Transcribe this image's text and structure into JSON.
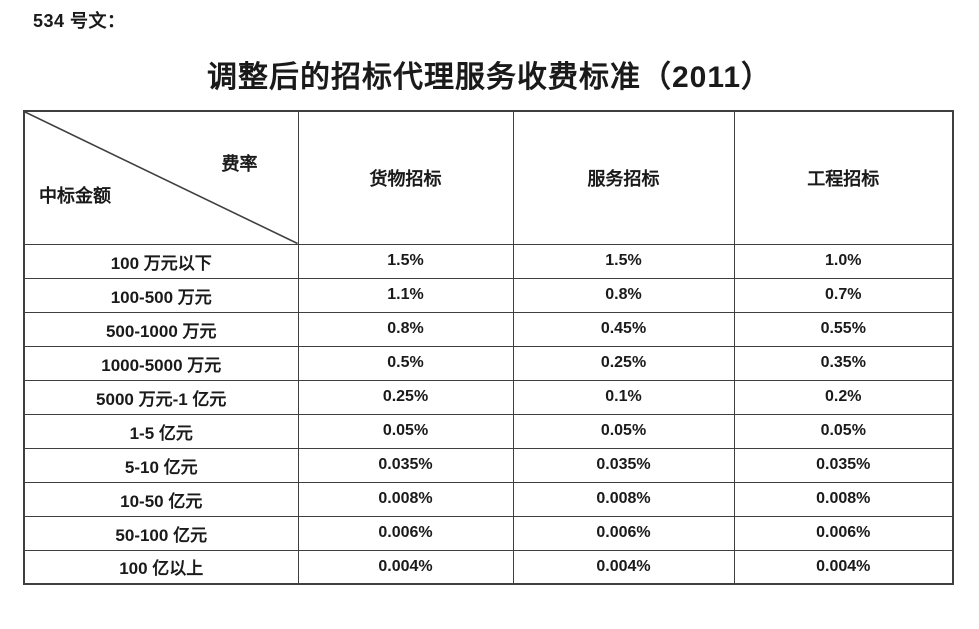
{
  "doc": {
    "label": "534 号文：",
    "title": "调整后的招标代理服务收费标准（2011）"
  },
  "table": {
    "corner": {
      "top_right": "费率",
      "bottom_left": "中标金额"
    },
    "columns": [
      "货物招标",
      "服务招标",
      "工程招标"
    ],
    "rows": [
      {
        "amount": "100 万元以下",
        "values": [
          "1.5%",
          "1.5%",
          "1.0%"
        ]
      },
      {
        "amount": "100-500 万元",
        "values": [
          "1.1%",
          "0.8%",
          "0.7%"
        ]
      },
      {
        "amount": "500-1000 万元",
        "values": [
          "0.8%",
          "0.45%",
          "0.55%"
        ]
      },
      {
        "amount": "1000-5000 万元",
        "values": [
          "0.5%",
          "0.25%",
          "0.35%"
        ]
      },
      {
        "amount": "5000 万元-1 亿元",
        "values": [
          "0.25%",
          "0.1%",
          "0.2%"
        ]
      },
      {
        "amount": "1-5 亿元",
        "values": [
          "0.05%",
          "0.05%",
          "0.05%"
        ]
      },
      {
        "amount": "5-10 亿元",
        "values": [
          "0.035%",
          "0.035%",
          "0.035%"
        ]
      },
      {
        "amount": "10-50 亿元",
        "values": [
          "0.008%",
          "0.008%",
          "0.008%"
        ]
      },
      {
        "amount": "50-100 亿元",
        "values": [
          "0.006%",
          "0.006%",
          "0.006%"
        ]
      },
      {
        "amount": "100 亿以上",
        "values": [
          "0.004%",
          "0.004%",
          "0.004%"
        ]
      }
    ]
  },
  "colors": {
    "text": "#1a1a1a",
    "border": "#3f3f3f",
    "background": "#ffffff"
  }
}
